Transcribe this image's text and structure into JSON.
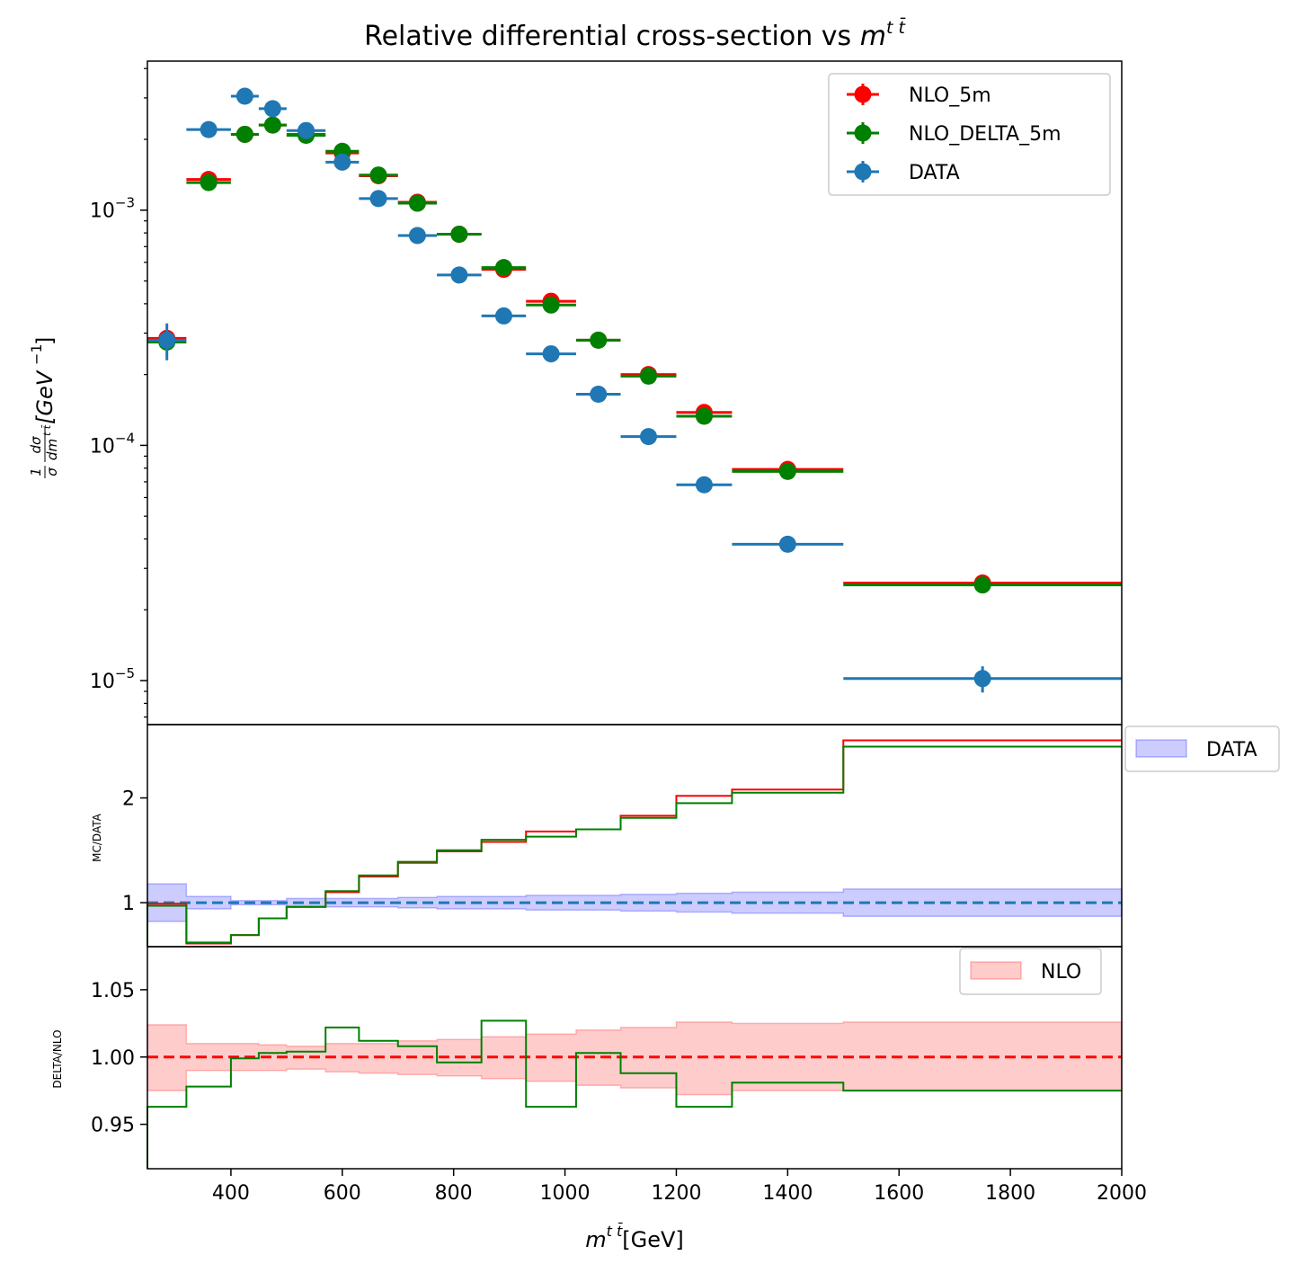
{
  "chart_data": [
    {
      "panel": "main",
      "type": "scatter",
      "title": "Relative differential cross-section vs m^{t̅t}",
      "title_text": "Relative differential cross-section vs ",
      "title_math": "m",
      "title_sup": "t t̄",
      "ylabel_frac_num": "1",
      "ylabel_frac_den": "σ",
      "ylabel_d_num": "dσ",
      "ylabel_d_den": "dm",
      "ylabel_d_den_sup": "t t̄",
      "ylabel_unit": "[GeV",
      "ylabel_unit_sup": "−1",
      "ylabel_unit_close": "]",
      "yscale": "log",
      "ylim": [
        6.5e-06,
        0.0043
      ],
      "xlim": [
        250,
        2000
      ],
      "y_ticks": [
        {
          "value": 0.001,
          "base": "10",
          "exp": "−3"
        },
        {
          "value": 0.0001,
          "base": "10",
          "exp": "−4"
        },
        {
          "value": 1e-05,
          "base": "10",
          "exp": "−5"
        }
      ],
      "bins": [
        [
          250,
          320
        ],
        [
          320,
          400
        ],
        [
          400,
          450
        ],
        [
          450,
          500
        ],
        [
          500,
          570
        ],
        [
          570,
          630
        ],
        [
          630,
          700
        ],
        [
          700,
          770
        ],
        [
          770,
          850
        ],
        [
          850,
          930
        ],
        [
          930,
          1020
        ],
        [
          1020,
          1100
        ],
        [
          1100,
          1200
        ],
        [
          1200,
          1300
        ],
        [
          1300,
          1500
        ],
        [
          1500,
          2000
        ]
      ],
      "x_centers": [
        285,
        360,
        425,
        475,
        535,
        600,
        665,
        735,
        810,
        890,
        975,
        1060,
        1150,
        1250,
        1400,
        1750
      ],
      "series": [
        {
          "name": "NLO_5m",
          "color": "#ff0000",
          "values": [
            0.000285,
            0.00135,
            0.0021,
            0.0023,
            0.0021,
            0.00175,
            0.0014,
            0.00108,
            0.00079,
            0.00056,
            0.00041,
            0.00028,
            0.0002,
            0.000138,
            7.9e-05,
            2.6e-05
          ],
          "errors": [
            0,
            0,
            0,
            0,
            0,
            0,
            0,
            0,
            0,
            0,
            0,
            0,
            0,
            0,
            0,
            0
          ]
        },
        {
          "name": "NLO_DELTA_5m",
          "color": "#008000",
          "values": [
            0.000275,
            0.00131,
            0.0021,
            0.0023,
            0.00208,
            0.00178,
            0.00141,
            0.00107,
            0.00079,
            0.00057,
            0.000395,
            0.00028,
            0.000197,
            0.000133,
            7.75e-05,
            2.55e-05
          ],
          "errors": [
            0,
            0,
            0,
            0,
            0,
            0,
            0,
            0,
            0,
            0,
            0,
            0,
            0,
            0,
            0,
            0
          ]
        },
        {
          "name": "DATA",
          "color": "#1f77b4",
          "values": [
            0.00028,
            0.0022,
            0.00305,
            0.0027,
            0.00218,
            0.0016,
            0.00112,
            0.00078,
            0.00053,
            0.000355,
            0.000245,
            0.000165,
            0.000109,
            6.8e-05,
            3.8e-05,
            1.02e-05
          ],
          "errors": [
            5e-05,
            0,
            0,
            0,
            0,
            0,
            0,
            0,
            0,
            0,
            0,
            0,
            0,
            2.5e-06,
            2.5e-06,
            1.3e-06
          ]
        }
      ],
      "legend": [
        "NLO_5m",
        "NLO_DELTA_5m",
        "DATA"
      ],
      "legend_position": "top-right"
    },
    {
      "panel": "ratio",
      "type": "line",
      "ylabel": "MC/DATA",
      "ylim": [
        0.58,
        2.7
      ],
      "y_ticks": [
        1,
        2
      ],
      "bins": [
        [
          250,
          320
        ],
        [
          320,
          400
        ],
        [
          400,
          450
        ],
        [
          450,
          500
        ],
        [
          500,
          570
        ],
        [
          570,
          630
        ],
        [
          630,
          700
        ],
        [
          700,
          770
        ],
        [
          770,
          850
        ],
        [
          850,
          930
        ],
        [
          930,
          1020
        ],
        [
          1020,
          1100
        ],
        [
          1100,
          1200
        ],
        [
          1200,
          1300
        ],
        [
          1300,
          1500
        ],
        [
          1500,
          2000
        ]
      ],
      "series": [
        {
          "name": "NLO_5m",
          "color": "#ff0000",
          "values": [
            0.99,
            0.61,
            0.69,
            0.85,
            0.96,
            1.1,
            1.25,
            1.38,
            1.49,
            1.58,
            1.68,
            1.7,
            1.83,
            2.02,
            2.08,
            2.55
          ]
        },
        {
          "name": "NLO_DELTA_5m",
          "color": "#008000",
          "values": [
            0.97,
            0.62,
            0.69,
            0.85,
            0.96,
            1.11,
            1.26,
            1.39,
            1.5,
            1.6,
            1.63,
            1.7,
            1.81,
            1.95,
            2.05,
            2.49
          ]
        }
      ],
      "band": {
        "name": "DATA",
        "color": "#0000ff",
        "half_width": [
          0.18,
          0.06,
          0.02,
          0.02,
          0.04,
          0.04,
          0.04,
          0.05,
          0.06,
          0.06,
          0.07,
          0.07,
          0.08,
          0.09,
          0.1,
          0.13
        ]
      },
      "reference": 1,
      "legend": [
        "DATA"
      ],
      "legend_position": "outside-right"
    },
    {
      "panel": "delta",
      "type": "line",
      "ylabel": "DELTA/NLO",
      "ylim": [
        0.917,
        1.082
      ],
      "y_ticks": [
        {
          "value": 0.95,
          "label": "0.95"
        },
        {
          "value": 1.0,
          "label": "1.00"
        },
        {
          "value": 1.05,
          "label": "1.05"
        }
      ],
      "xlabel": "m",
      "xlabel_sup": "t t̄",
      "xlabel_unit": "[GeV]",
      "x_ticks": [
        400,
        600,
        800,
        1000,
        1200,
        1400,
        1600,
        1800,
        2000
      ],
      "bins": [
        [
          250,
          320
        ],
        [
          320,
          400
        ],
        [
          400,
          450
        ],
        [
          450,
          500
        ],
        [
          500,
          570
        ],
        [
          570,
          630
        ],
        [
          630,
          700
        ],
        [
          700,
          770
        ],
        [
          770,
          850
        ],
        [
          850,
          930
        ],
        [
          930,
          1020
        ],
        [
          1020,
          1100
        ],
        [
          1100,
          1200
        ],
        [
          1200,
          1300
        ],
        [
          1300,
          1500
        ],
        [
          1500,
          2000
        ]
      ],
      "series": [
        {
          "name": "NLO_DELTA_5m/NLO_5m",
          "color": "#008000",
          "values": [
            0.963,
            0.978,
            0.999,
            1.003,
            1.004,
            1.022,
            1.012,
            1.008,
            0.996,
            1.027,
            0.963,
            1.003,
            0.988,
            0.963,
            0.981,
            0.975
          ]
        }
      ],
      "band": {
        "name": "NLO",
        "color": "#ff0000",
        "upper": [
          1.024,
          1.01,
          1.01,
          1.009,
          1.008,
          1.01,
          1.01,
          1.012,
          1.013,
          1.015,
          1.017,
          1.02,
          1.022,
          1.026,
          1.025,
          1.026
        ],
        "lower": [
          0.975,
          0.99,
          0.99,
          0.99,
          0.991,
          0.989,
          0.988,
          0.987,
          0.986,
          0.984,
          0.982,
          0.979,
          0.977,
          0.972,
          0.975,
          0.975
        ]
      },
      "reference": 1.0,
      "legend": [
        "NLO"
      ],
      "legend_position": "top-right"
    }
  ]
}
